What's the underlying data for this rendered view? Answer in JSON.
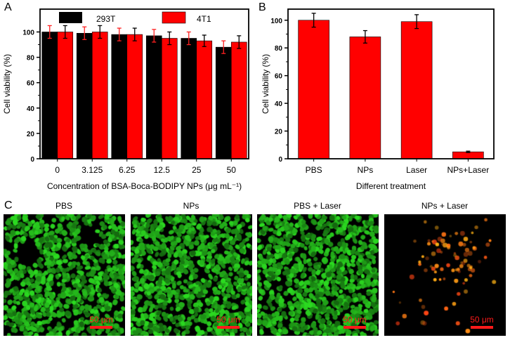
{
  "panels": {
    "a": "A",
    "b": "B",
    "c": "C"
  },
  "chart_data": [
    {
      "type": "bar",
      "title": "",
      "xlabel": "Concentration of BSA-Boca-BODIPY NPs (μg mL⁻¹)",
      "ylabel": "Cell viability (%)",
      "ylim": [
        0,
        118
      ],
      "yticks": [
        0,
        20,
        40,
        60,
        80,
        100
      ],
      "categories": [
        "0",
        "3.125",
        "6.25",
        "12.5",
        "25",
        "50"
      ],
      "legend_position": "top",
      "series": [
        {
          "name": "293T",
          "color": "#000000",
          "error_color": "#000000",
          "values": [
            100,
            99,
            98,
            97,
            95,
            88
          ],
          "errors": [
            5,
            5,
            5,
            5,
            5,
            5
          ]
        },
        {
          "name": "4T1",
          "color": "#ff0000",
          "error_color": "#000000",
          "values": [
            100,
            100,
            98,
            95,
            93,
            92
          ],
          "errors": [
            5,
            5,
            5,
            5,
            4.5,
            5
          ]
        }
      ]
    },
    {
      "type": "bar",
      "title": "",
      "xlabel": "Different treatment",
      "ylabel": "Cell viability (%)",
      "ylim": [
        0,
        108
      ],
      "yticks": [
        0,
        20,
        40,
        60,
        80,
        100
      ],
      "categories": [
        "PBS",
        "NPs",
        "Laser",
        "NPs+Laser"
      ],
      "series": [
        {
          "name": "Cell viability",
          "color": "#ff0000",
          "values": [
            100,
            88,
            99,
            5
          ],
          "errors": [
            5,
            4.5,
            5,
            0.5
          ]
        }
      ]
    }
  ],
  "microscopy": [
    {
      "title": "PBS",
      "scale": "50 μm",
      "stain": "green"
    },
    {
      "title": "NPs",
      "scale": "50 μm",
      "stain": "green"
    },
    {
      "title": "PBS + Laser",
      "scale": "50 μm",
      "stain": "green"
    },
    {
      "title": "NPs + Laser",
      "scale": "50 μm",
      "stain": "red"
    }
  ]
}
